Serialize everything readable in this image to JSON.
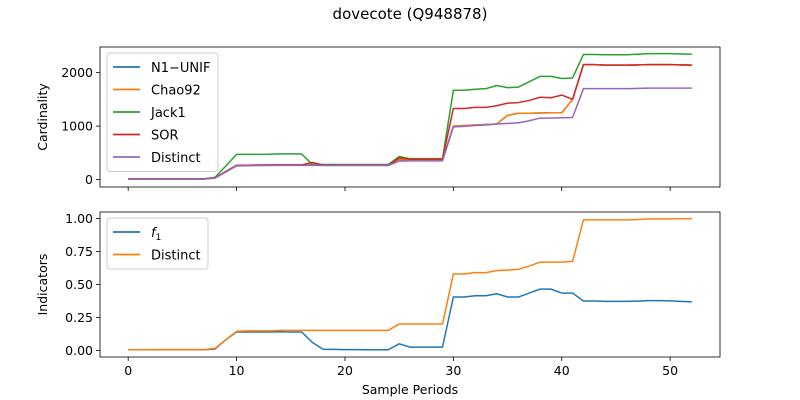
{
  "title": "dovecote (Q948878)",
  "chart_data": [
    {
      "type": "line",
      "ylabel": "Cardinality",
      "xlabel": "",
      "xlim": [
        -2.6,
        54.6
      ],
      "ylim": [
        -140,
        2480
      ],
      "xticks": [
        0,
        10,
        20,
        30,
        40,
        50
      ],
      "yticks": [
        0,
        1000,
        2000
      ],
      "show_xtick_labels": false,
      "legend_position": "upper left",
      "x": [
        0,
        1,
        2,
        3,
        4,
        5,
        6,
        7,
        8,
        9,
        10,
        11,
        12,
        13,
        14,
        15,
        16,
        17,
        18,
        19,
        20,
        21,
        22,
        23,
        24,
        25,
        26,
        27,
        28,
        29,
        30,
        31,
        32,
        33,
        34,
        35,
        36,
        37,
        38,
        39,
        40,
        41,
        42,
        43,
        44,
        45,
        46,
        47,
        48,
        49,
        50,
        51,
        52
      ],
      "series": [
        {
          "name": "N1−UNIF",
          "color": "#1f77b4",
          "values": [
            10,
            10,
            10,
            10,
            10,
            10,
            10,
            10,
            30,
            150,
            265,
            268,
            270,
            272,
            275,
            275,
            275,
            280,
            270,
            270,
            270,
            270,
            270,
            270,
            270,
            375,
            360,
            360,
            360,
            360,
            1000,
            1010,
            1020,
            1030,
            1040,
            1200,
            1240,
            1240,
            1245,
            1250,
            1250,
            1500,
            2150,
            2150,
            2140,
            2140,
            2140,
            2145,
            2150,
            2150,
            2150,
            2145,
            2140
          ]
        },
        {
          "name": "Chao92",
          "color": "#ff7f0e",
          "values": [
            10,
            10,
            10,
            10,
            10,
            10,
            10,
            10,
            30,
            150,
            265,
            268,
            270,
            272,
            275,
            275,
            275,
            280,
            270,
            270,
            270,
            270,
            270,
            270,
            270,
            375,
            360,
            360,
            360,
            360,
            1000,
            1010,
            1020,
            1030,
            1040,
            1200,
            1240,
            1240,
            1245,
            1250,
            1250,
            1500,
            2150,
            2150,
            2140,
            2140,
            2140,
            2145,
            2150,
            2150,
            2150,
            2145,
            2140
          ]
        },
        {
          "name": "Jack1",
          "color": "#2ca02c",
          "values": [
            15,
            15,
            15,
            15,
            15,
            15,
            15,
            15,
            40,
            250,
            470,
            470,
            470,
            472,
            480,
            480,
            478,
            280,
            280,
            280,
            280,
            280,
            280,
            280,
            280,
            430,
            390,
            390,
            390,
            390,
            1670,
            1670,
            1690,
            1700,
            1760,
            1720,
            1730,
            1830,
            1930,
            1930,
            1890,
            1900,
            2340,
            2340,
            2335,
            2335,
            2335,
            2345,
            2355,
            2355,
            2355,
            2350,
            2345
          ]
        },
        {
          "name": "SOR",
          "color": "#d62728",
          "values": [
            10,
            10,
            10,
            10,
            10,
            10,
            10,
            10,
            30,
            150,
            265,
            268,
            270,
            272,
            275,
            275,
            275,
            320,
            270,
            270,
            270,
            270,
            270,
            270,
            270,
            400,
            380,
            380,
            380,
            380,
            1330,
            1330,
            1350,
            1350,
            1380,
            1430,
            1440,
            1480,
            1540,
            1530,
            1580,
            1500,
            2150,
            2150,
            2140,
            2140,
            2140,
            2145,
            2150,
            2150,
            2150,
            2145,
            2140
          ]
        },
        {
          "name": "Distinct",
          "color": "#9467bd",
          "values": [
            10,
            10,
            10,
            10,
            10,
            10,
            10,
            10,
            25,
            140,
            255,
            258,
            260,
            262,
            265,
            265,
            265,
            268,
            262,
            262,
            262,
            262,
            262,
            262,
            262,
            345,
            350,
            350,
            350,
            350,
            985,
            995,
            1010,
            1020,
            1040,
            1050,
            1060,
            1100,
            1150,
            1150,
            1155,
            1160,
            1700,
            1700,
            1700,
            1700,
            1700,
            1705,
            1710,
            1710,
            1710,
            1710,
            1710
          ]
        }
      ]
    },
    {
      "type": "line",
      "ylabel": "Indicators",
      "xlabel": "Sample Periods",
      "xlim": [
        -2.6,
        54.6
      ],
      "ylim": [
        -0.05,
        1.05
      ],
      "xticks": [
        0,
        10,
        20,
        30,
        40,
        50
      ],
      "yticks": [
        0.0,
        0.25,
        0.5,
        0.75,
        1.0
      ],
      "ytick_labels": [
        "0.00",
        "0.25",
        "0.50",
        "0.75",
        "1.00"
      ],
      "legend_position": "upper left",
      "x": [
        0,
        1,
        2,
        3,
        4,
        5,
        6,
        7,
        8,
        9,
        10,
        11,
        12,
        13,
        14,
        15,
        16,
        17,
        18,
        19,
        20,
        21,
        22,
        23,
        24,
        25,
        26,
        27,
        28,
        29,
        30,
        31,
        32,
        33,
        34,
        35,
        36,
        37,
        38,
        39,
        40,
        41,
        42,
        43,
        44,
        45,
        46,
        47,
        48,
        49,
        50,
        51,
        52
      ],
      "series": [
        {
          "name": "f",
          "name_subscript": "1",
          "color": "#1f77b4",
          "values": [
            0.005,
            0.005,
            0.005,
            0.005,
            0.005,
            0.005,
            0.005,
            0.005,
            0.01,
            0.08,
            0.14,
            0.14,
            0.14,
            0.14,
            0.142,
            0.14,
            0.14,
            0.06,
            0.008,
            0.008,
            0.006,
            0.006,
            0.005,
            0.005,
            0.005,
            0.05,
            0.025,
            0.025,
            0.025,
            0.025,
            0.405,
            0.405,
            0.415,
            0.415,
            0.43,
            0.405,
            0.405,
            0.435,
            0.465,
            0.465,
            0.435,
            0.435,
            0.375,
            0.375,
            0.372,
            0.372,
            0.372,
            0.374,
            0.378,
            0.378,
            0.376,
            0.372,
            0.368
          ]
        },
        {
          "name": "Distinct",
          "color": "#ff7f0e",
          "values": [
            0.005,
            0.005,
            0.006,
            0.006,
            0.006,
            0.006,
            0.006,
            0.006,
            0.015,
            0.08,
            0.145,
            0.148,
            0.148,
            0.148,
            0.152,
            0.152,
            0.152,
            0.152,
            0.152,
            0.152,
            0.152,
            0.152,
            0.152,
            0.152,
            0.152,
            0.2,
            0.2,
            0.2,
            0.2,
            0.2,
            0.58,
            0.58,
            0.59,
            0.59,
            0.605,
            0.61,
            0.615,
            0.64,
            0.67,
            0.67,
            0.67,
            0.675,
            0.99,
            0.99,
            0.99,
            0.99,
            0.99,
            0.993,
            0.998,
            0.998,
            0.998,
            0.999,
            1.0
          ]
        }
      ]
    }
  ]
}
